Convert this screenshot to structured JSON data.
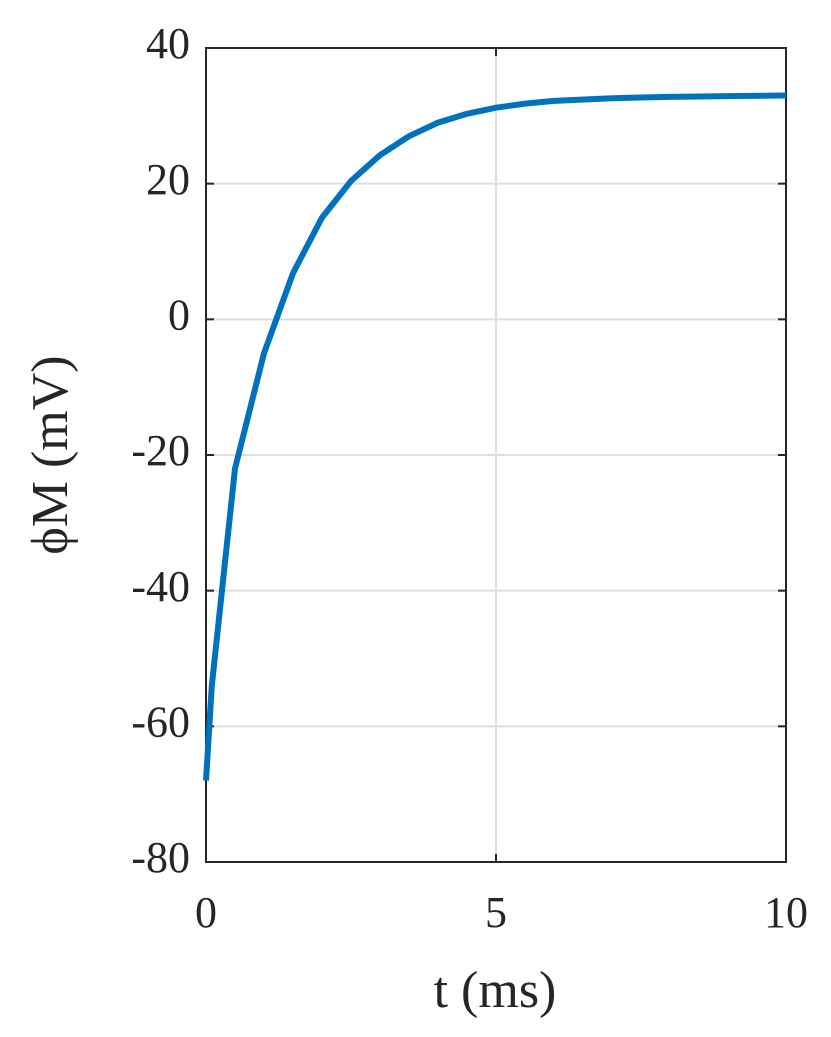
{
  "chart_data": {
    "type": "line",
    "x_label": "t (ms)",
    "y_label": "ϕM (mV)",
    "x": [
      0,
      0.1,
      0.5,
      1,
      1.5,
      2,
      2.5,
      3,
      3.5,
      4,
      4.5,
      5,
      5.5,
      6,
      7,
      8,
      9,
      10
    ],
    "series": [
      {
        "name": "phi_M",
        "color": "#0072bd",
        "values": [
          -68,
          -54,
          -22,
          -5,
          6.8,
          15,
          20.4,
          24.2,
          27,
          29,
          30.3,
          31.2,
          31.8,
          32.2,
          32.6,
          32.8,
          32.9,
          33
        ]
      }
    ],
    "xlim": [
      0,
      10
    ],
    "xticks": [
      0,
      5,
      10
    ],
    "ylim": [
      -80,
      40
    ],
    "yticks": [
      -80,
      -60,
      -40,
      -20,
      0,
      20,
      40
    ],
    "grid": true
  }
}
